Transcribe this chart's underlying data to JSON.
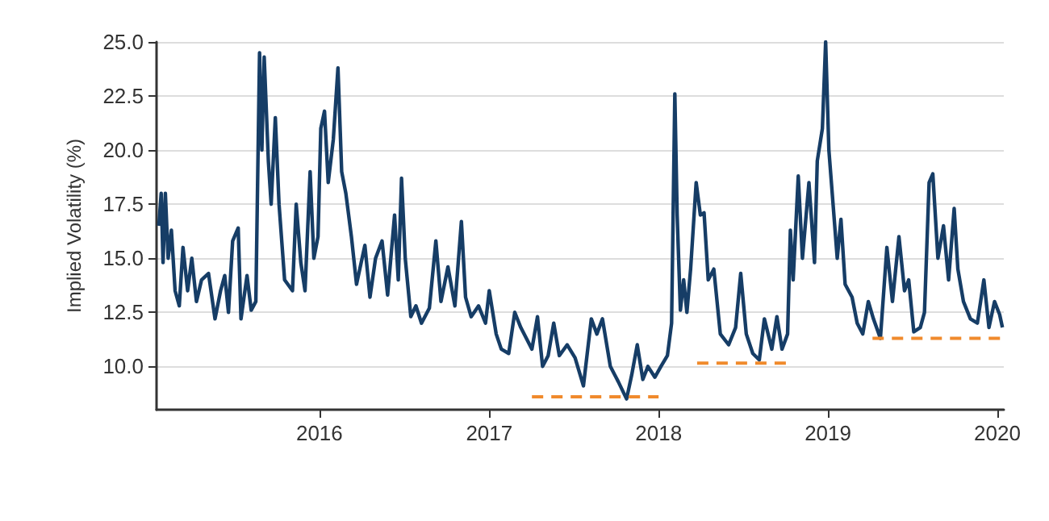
{
  "chart_data": {
    "type": "line",
    "ylabel": "Implied Volatility (%)",
    "xlim": [
      "2015-01-15",
      "2020-01-15"
    ],
    "xticks": [
      "2016",
      "2017",
      "2018",
      "2019",
      "2020"
    ],
    "ylim": [
      8,
      25
    ],
    "yticks": [
      {
        "value": 10,
        "label": "10.0"
      },
      {
        "value": 12.5,
        "label": "12.5"
      },
      {
        "value": 15,
        "label": "15.0"
      },
      {
        "value": 17.5,
        "label": "17.5"
      },
      {
        "value": 20,
        "label": "20.0"
      },
      {
        "value": 22.5,
        "label": "22.5"
      },
      {
        "value": 25,
        "label": "25.0"
      }
    ],
    "grid": "y",
    "series": [
      {
        "color": "#163d66",
        "line_style": "solid",
        "x": [
          "2015-01-20",
          "2015-01-25",
          "2015-01-29",
          "2015-02-03",
          "2015-02-09",
          "2015-02-16",
          "2015-02-24",
          "2015-03-05",
          "2015-03-13",
          "2015-03-23",
          "2015-04-01",
          "2015-04-11",
          "2015-04-22",
          "2015-05-07",
          "2015-05-21",
          "2015-06-02",
          "2015-06-11",
          "2015-06-19",
          "2015-06-28",
          "2015-07-10",
          "2015-07-16",
          "2015-07-29",
          "2015-08-07",
          "2015-08-17",
          "2015-08-25",
          "2015-08-30",
          "2015-09-04",
          "2015-09-13",
          "2015-09-19",
          "2015-09-28",
          "2015-10-06",
          "2015-10-18",
          "2015-11-04",
          "2015-11-12",
          "2015-11-22",
          "2015-12-01",
          "2015-12-12",
          "2015-12-20",
          "2015-12-29",
          "2016-01-04",
          "2016-01-12",
          "2016-01-20",
          "2016-01-31",
          "2016-02-10",
          "2016-02-18",
          "2016-02-27",
          "2016-03-10",
          "2016-03-21",
          "2016-04-08",
          "2016-04-19",
          "2016-05-01",
          "2016-05-15",
          "2016-05-27",
          "2016-06-11",
          "2016-06-19",
          "2016-06-26",
          "2016-07-04",
          "2016-07-16",
          "2016-07-27",
          "2016-08-08",
          "2016-08-25",
          "2016-09-08",
          "2016-09-19",
          "2016-10-04",
          "2016-10-19",
          "2016-11-02",
          "2016-11-11",
          "2016-11-23",
          "2016-12-09",
          "2016-12-24",
          "2017-01-01",
          "2017-01-16",
          "2017-01-27",
          "2017-02-12",
          "2017-02-25",
          "2017-03-10",
          "2017-04-03",
          "2017-04-15",
          "2017-04-26",
          "2017-05-08",
          "2017-05-20",
          "2017-06-01",
          "2017-06-18",
          "2017-07-05",
          "2017-07-23",
          "2017-08-09",
          "2017-08-21",
          "2017-09-02",
          "2017-09-19",
          "2017-10-06",
          "2017-10-24",
          "2017-11-04",
          "2017-11-16",
          "2017-11-28",
          "2017-12-09",
          "2017-12-24",
          "2018-01-06",
          "2018-01-20",
          "2018-01-29",
          "2018-02-05",
          "2018-02-10",
          "2018-02-17",
          "2018-02-24",
          "2018-03-03",
          "2018-03-11",
          "2018-03-23",
          "2018-04-01",
          "2018-04-09",
          "2018-04-18",
          "2018-04-30",
          "2018-05-14",
          "2018-06-01",
          "2018-06-16",
          "2018-06-27",
          "2018-07-09",
          "2018-07-23",
          "2018-08-06",
          "2018-08-17",
          "2018-09-02",
          "2018-09-13",
          "2018-09-24",
          "2018-10-06",
          "2018-10-12",
          "2018-10-18",
          "2018-10-29",
          "2018-11-07",
          "2018-11-21",
          "2018-12-03",
          "2018-12-09",
          "2018-12-20",
          "2018-12-27",
          "2019-01-03",
          "2019-01-12",
          "2019-01-21",
          "2019-01-29",
          "2019-02-07",
          "2019-02-22",
          "2019-03-05",
          "2019-03-17",
          "2019-03-29",
          "2019-04-09",
          "2019-04-24",
          "2019-05-08",
          "2019-05-20",
          "2019-06-03",
          "2019-06-15",
          "2019-06-24",
          "2019-07-05",
          "2019-07-19",
          "2019-07-28",
          "2019-08-07",
          "2019-08-15",
          "2019-08-26",
          "2019-09-07",
          "2019-09-18",
          "2019-09-30",
          "2019-10-08",
          "2019-10-20",
          "2019-11-04",
          "2019-11-19",
          "2019-12-03",
          "2019-12-14",
          "2019-12-26",
          "2020-01-06",
          "2020-01-12"
        ],
        "values": [
          16.5,
          18.0,
          14.8,
          18.0,
          15.0,
          16.3,
          13.5,
          12.8,
          15.5,
          13.5,
          15.0,
          13.0,
          14.0,
          14.3,
          12.2,
          13.5,
          14.2,
          12.5,
          15.8,
          16.4,
          12.2,
          14.2,
          12.6,
          13.0,
          24.5,
          20.0,
          24.3,
          19.5,
          17.5,
          21.5,
          17.5,
          14.0,
          13.5,
          17.5,
          14.8,
          13.5,
          19.0,
          15.0,
          16.0,
          21.0,
          21.8,
          18.5,
          20.5,
          23.8,
          19.0,
          18.0,
          16.0,
          13.8,
          15.6,
          13.2,
          15.0,
          15.8,
          13.3,
          17.0,
          14.0,
          18.7,
          15.0,
          12.3,
          12.8,
          12.0,
          12.7,
          15.8,
          13.0,
          14.6,
          12.8,
          16.7,
          13.2,
          12.3,
          12.8,
          12.0,
          13.5,
          11.5,
          10.8,
          10.6,
          12.5,
          11.8,
          10.8,
          12.3,
          10.0,
          10.5,
          12.0,
          10.5,
          11.0,
          10.4,
          9.1,
          12.2,
          11.5,
          12.2,
          10.0,
          9.3,
          8.5,
          9.6,
          11.0,
          9.4,
          10.0,
          9.5,
          10.0,
          10.5,
          12.0,
          22.6,
          17.0,
          12.6,
          14.0,
          12.5,
          14.5,
          18.5,
          17.0,
          17.1,
          14.0,
          14.5,
          11.5,
          11.0,
          11.8,
          14.3,
          11.5,
          10.6,
          10.3,
          12.2,
          10.8,
          12.3,
          10.8,
          11.5,
          16.3,
          14.0,
          18.8,
          15.0,
          18.5,
          14.8,
          19.5,
          21.0,
          25.0,
          20.0,
          17.5,
          15.0,
          16.8,
          13.8,
          13.2,
          12.0,
          11.5,
          13.0,
          12.2,
          11.3,
          15.5,
          13.0,
          16.0,
          13.5,
          14.0,
          11.6,
          11.8,
          12.5,
          18.5,
          18.9,
          15.0,
          16.5,
          14.0,
          17.3,
          14.5,
          13.0,
          12.2,
          12.0,
          14.0,
          11.8,
          13.0,
          12.4,
          11.8
        ]
      },
      {
        "color": "#f08a2c",
        "line_style": "dashed",
        "x": [
          "2017-04-03",
          "2018-01-01"
        ],
        "values": [
          8.6,
          8.6
        ]
      },
      {
        "color": "#f08a2c",
        "line_style": "dashed",
        "x": [
          "2018-03-25",
          "2018-10-12"
        ],
        "values": [
          10.15,
          10.15
        ]
      },
      {
        "color": "#f08a2c",
        "line_style": "dashed",
        "x": [
          "2019-04-07",
          "2020-01-12"
        ],
        "values": [
          11.3,
          11.3
        ]
      }
    ]
  }
}
